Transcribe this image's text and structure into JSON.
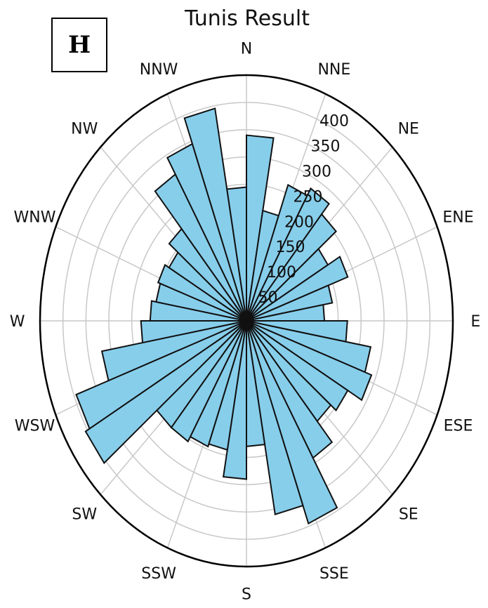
{
  "panel_label": "H",
  "chart_data": {
    "type": "polar-bar",
    "title": "Tunis Result",
    "direction_labels": [
      "N",
      "NNE",
      "NE",
      "ENE",
      "E",
      "ESE",
      "SE",
      "SSE",
      "S",
      "SSW",
      "SW",
      "WSW",
      "W",
      "WNW",
      "NW",
      "NNW"
    ],
    "radial_ticks": [
      50,
      100,
      150,
      200,
      250,
      300,
      350,
      400
    ],
    "rmax": 450,
    "bin_width_deg": 10,
    "bins_start_deg": [
      0,
      10,
      20,
      30,
      40,
      50,
      60,
      70,
      80,
      90,
      100,
      110,
      120,
      130,
      140,
      150,
      160,
      170,
      180,
      190,
      200,
      210,
      220,
      230,
      240,
      250,
      260,
      270,
      280,
      290,
      300,
      310,
      320,
      330,
      340,
      350
    ],
    "values": [
      340,
      205,
      265,
      280,
      255,
      205,
      235,
      190,
      170,
      220,
      275,
      290,
      255,
      240,
      290,
      395,
      360,
      230,
      290,
      240,
      245,
      255,
      255,
      405,
      395,
      320,
      230,
      210,
      200,
      205,
      195,
      220,
      310,
      345,
      395,
      245
    ],
    "bar_color": "#87CEEB",
    "edge_color": "#111111",
    "grid": true,
    "orientation": "clockwise, 0 at North"
  }
}
